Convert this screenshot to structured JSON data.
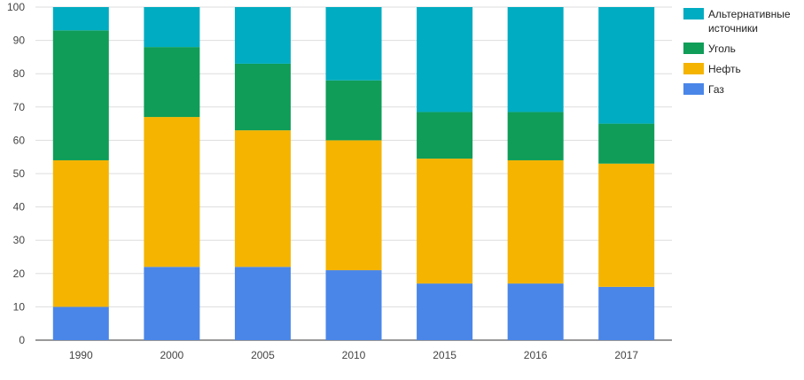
{
  "chart_data": {
    "type": "bar",
    "stacked": true,
    "title": "",
    "xlabel": "",
    "ylabel": "",
    "ylim": [
      0,
      100
    ],
    "yticks": [
      0,
      10,
      20,
      30,
      40,
      50,
      60,
      70,
      80,
      90,
      100
    ],
    "grid": true,
    "legend_position": "right",
    "categories": [
      "1990",
      "2000",
      "2005",
      "2010",
      "2015",
      "2016",
      "2017"
    ],
    "series": [
      {
        "name": "Газ",
        "color": "#4a86e8",
        "values": [
          10,
          22,
          22,
          21,
          17,
          17,
          16
        ]
      },
      {
        "name": "Нефть",
        "color": "#f4b400",
        "values": [
          44,
          45,
          41,
          39,
          37.5,
          37,
          37
        ]
      },
      {
        "name": "Уголь",
        "color": "#0f9d58",
        "values": [
          39,
          21,
          20,
          18,
          14,
          14.5,
          12
        ]
      },
      {
        "name": "Альтернативные источники",
        "color": "#00acc1",
        "values": [
          7,
          12,
          17,
          22,
          31.5,
          31.5,
          35
        ]
      }
    ],
    "legend": [
      {
        "lines": [
          "Альтернативные",
          "источники"
        ],
        "color": "#00acc1"
      },
      {
        "lines": [
          "Уголь"
        ],
        "color": "#0f9d58"
      },
      {
        "lines": [
          "Нефть"
        ],
        "color": "#f4b400"
      },
      {
        "lines": [
          "Газ"
        ],
        "color": "#4a86e8"
      }
    ]
  }
}
